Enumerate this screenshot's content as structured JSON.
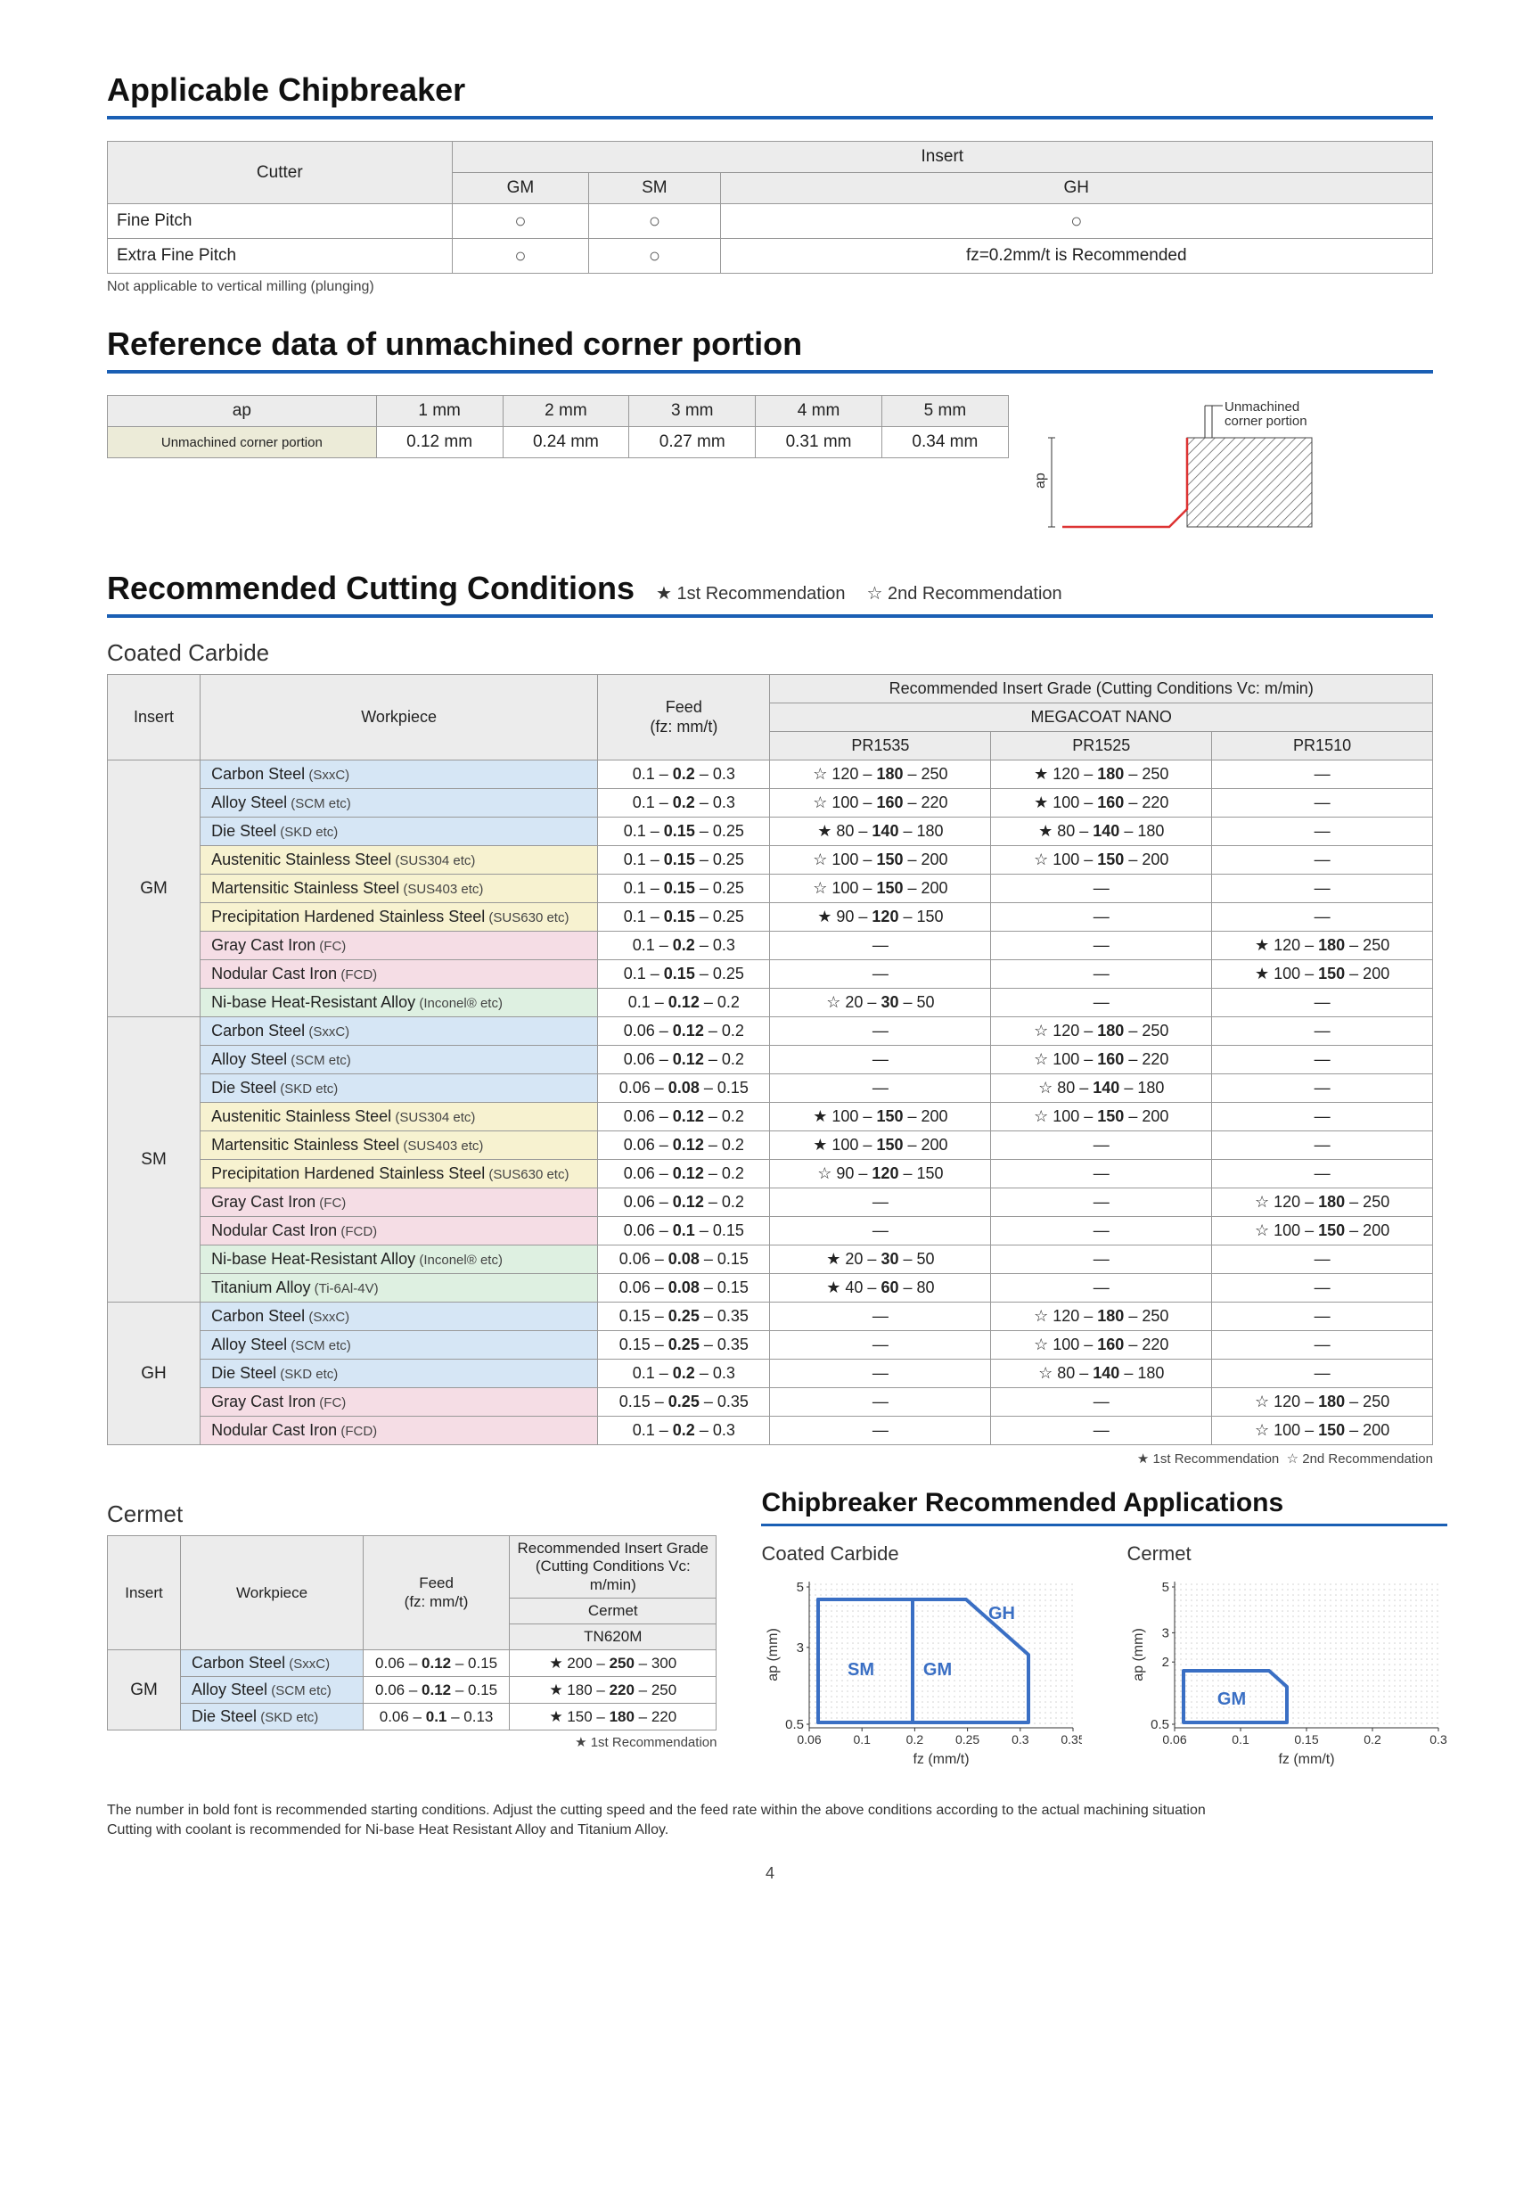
{
  "sections": {
    "chipbreaker": {
      "title": "Applicable Chipbreaker",
      "table": {
        "cutterHeader": "Cutter",
        "insertHeader": "Insert",
        "cols": [
          "GM",
          "SM",
          "GH"
        ],
        "rows": [
          {
            "label": "Fine Pitch",
            "vals": [
              "○",
              "○",
              "○"
            ]
          },
          {
            "label": "Extra Fine Pitch",
            "vals": [
              "○",
              "○",
              "fz=0.2mm/t is Recommended"
            ]
          }
        ],
        "note": "Not applicable to vertical milling (plunging)"
      }
    },
    "reference": {
      "title": "Reference data of unmachined corner portion",
      "headers": [
        "ap",
        "1 mm",
        "2 mm",
        "3 mm",
        "4 mm",
        "5 mm"
      ],
      "rowLabel": "Unmachined corner portion",
      "rowVals": [
        "0.12 mm",
        "0.24 mm",
        "0.27 mm",
        "0.31 mm",
        "0.34 mm"
      ],
      "diagram": {
        "apLabel": "ap",
        "cornerLabel": "Unmachined\ncorner portion"
      }
    },
    "cutting": {
      "title": "Recommended Cutting Conditions",
      "legend1": "1st Recommendation",
      "legend2": "2nd Recommendation",
      "coated": {
        "subhead": "Coated Carbide",
        "headers": {
          "insert": "Insert",
          "workpiece": "Workpiece",
          "feed": "Feed\n(fz: mm/t)",
          "topGrade": "Recommended Insert Grade (Cutting Conditions Vc: m/min)",
          "meganano": "MEGACOAT NANO",
          "grades": [
            "PR1535",
            "PR1525",
            "PR1510"
          ]
        },
        "groups": [
          {
            "insert": "GM",
            "rows": [
              {
                "bg": "blue",
                "wp": "Carbon Steel (SxxC)",
                "feed": [
                  "0.1",
                  "0.2",
                  "0.3"
                ],
                "g": [
                  [
                    "☆",
                    "120",
                    "180",
                    "250"
                  ],
                  [
                    "★",
                    "120",
                    "180",
                    "250"
                  ],
                  null
                ]
              },
              {
                "bg": "blue",
                "wp": "Alloy Steel (SCM etc)",
                "feed": [
                  "0.1",
                  "0.2",
                  "0.3"
                ],
                "g": [
                  [
                    "☆",
                    "100",
                    "160",
                    "220"
                  ],
                  [
                    "★",
                    "100",
                    "160",
                    "220"
                  ],
                  null
                ]
              },
              {
                "bg": "blue",
                "wp": "Die Steel (SKD etc)",
                "feed": [
                  "0.1",
                  "0.15",
                  "0.25"
                ],
                "g": [
                  [
                    "★",
                    "80",
                    "140",
                    "180"
                  ],
                  [
                    "★",
                    "80",
                    "140",
                    "180"
                  ],
                  null
                ]
              },
              {
                "bg": "yellow",
                "wp": "Austenitic Stainless Steel (SUS304 etc)",
                "feed": [
                  "0.1",
                  "0.15",
                  "0.25"
                ],
                "g": [
                  [
                    "☆",
                    "100",
                    "150",
                    "200"
                  ],
                  [
                    "☆",
                    "100",
                    "150",
                    "200"
                  ],
                  null
                ]
              },
              {
                "bg": "yellow",
                "wp": "Martensitic Stainless Steel (SUS403 etc)",
                "feed": [
                  "0.1",
                  "0.15",
                  "0.25"
                ],
                "g": [
                  [
                    "☆",
                    "100",
                    "150",
                    "200"
                  ],
                  null,
                  null
                ]
              },
              {
                "bg": "yellow",
                "wp": "Precipitation Hardened Stainless Steel (SUS630 etc)",
                "feed": [
                  "0.1",
                  "0.15",
                  "0.25"
                ],
                "g": [
                  [
                    "★",
                    "90",
                    "120",
                    "150"
                  ],
                  null,
                  null
                ]
              },
              {
                "bg": "pink",
                "wp": "Gray Cast Iron (FC)",
                "feed": [
                  "0.1",
                  "0.2",
                  "0.3"
                ],
                "g": [
                  null,
                  null,
                  [
                    "★",
                    "120",
                    "180",
                    "250"
                  ]
                ]
              },
              {
                "bg": "pink",
                "wp": "Nodular Cast Iron (FCD)",
                "feed": [
                  "0.1",
                  "0.15",
                  "0.25"
                ],
                "g": [
                  null,
                  null,
                  [
                    "★",
                    "100",
                    "150",
                    "200"
                  ]
                ]
              },
              {
                "bg": "green",
                "wp": "Ni-base Heat-Resistant Alloy (Inconel® etc)",
                "feed": [
                  "0.1",
                  "0.12",
                  "0.2"
                ],
                "g": [
                  [
                    "☆",
                    "20",
                    "30",
                    "50"
                  ],
                  null,
                  null
                ]
              }
            ]
          },
          {
            "insert": "SM",
            "rows": [
              {
                "bg": "blue",
                "wp": "Carbon Steel (SxxC)",
                "feed": [
                  "0.06",
                  "0.12",
                  "0.2"
                ],
                "g": [
                  null,
                  [
                    "☆",
                    "120",
                    "180",
                    "250"
                  ],
                  null
                ]
              },
              {
                "bg": "blue",
                "wp": "Alloy Steel (SCM etc)",
                "feed": [
                  "0.06",
                  "0.12",
                  "0.2"
                ],
                "g": [
                  null,
                  [
                    "☆",
                    "100",
                    "160",
                    "220"
                  ],
                  null
                ]
              },
              {
                "bg": "blue",
                "wp": "Die Steel (SKD etc)",
                "feed": [
                  "0.06",
                  "0.08",
                  "0.15"
                ],
                "g": [
                  null,
                  [
                    "☆",
                    "80",
                    "140",
                    "180"
                  ],
                  null
                ]
              },
              {
                "bg": "yellow",
                "wp": "Austenitic Stainless Steel (SUS304 etc)",
                "feed": [
                  "0.06",
                  "0.12",
                  "0.2"
                ],
                "g": [
                  [
                    "★",
                    "100",
                    "150",
                    "200"
                  ],
                  [
                    "☆",
                    "100",
                    "150",
                    "200"
                  ],
                  null
                ]
              },
              {
                "bg": "yellow",
                "wp": "Martensitic Stainless Steel (SUS403 etc)",
                "feed": [
                  "0.06",
                  "0.12",
                  "0.2"
                ],
                "g": [
                  [
                    "★",
                    "100",
                    "150",
                    "200"
                  ],
                  null,
                  null
                ]
              },
              {
                "bg": "yellow",
                "wp": "Precipitation Hardened Stainless Steel (SUS630 etc)",
                "feed": [
                  "0.06",
                  "0.12",
                  "0.2"
                ],
                "g": [
                  [
                    "☆",
                    "90",
                    "120",
                    "150"
                  ],
                  null,
                  null
                ]
              },
              {
                "bg": "pink",
                "wp": "Gray Cast Iron (FC)",
                "feed": [
                  "0.06",
                  "0.12",
                  "0.2"
                ],
                "g": [
                  null,
                  null,
                  [
                    "☆",
                    "120",
                    "180",
                    "250"
                  ]
                ]
              },
              {
                "bg": "pink",
                "wp": "Nodular Cast Iron (FCD)",
                "feed": [
                  "0.06",
                  "0.1",
                  "0.15"
                ],
                "g": [
                  null,
                  null,
                  [
                    "☆",
                    "100",
                    "150",
                    "200"
                  ]
                ]
              },
              {
                "bg": "green",
                "wp": "Ni-base Heat-Resistant Alloy (Inconel® etc)",
                "feed": [
                  "0.06",
                  "0.08",
                  "0.15"
                ],
                "g": [
                  [
                    "★",
                    "20",
                    "30",
                    "50"
                  ],
                  null,
                  null
                ]
              },
              {
                "bg": "green",
                "wp": "Titanium Alloy (Ti-6Al-4V)",
                "feed": [
                  "0.06",
                  "0.08",
                  "0.15"
                ],
                "g": [
                  [
                    "★",
                    "40",
                    "60",
                    "80"
                  ],
                  null,
                  null
                ]
              }
            ]
          },
          {
            "insert": "GH",
            "rows": [
              {
                "bg": "blue",
                "wp": "Carbon Steel (SxxC)",
                "feed": [
                  "0.15",
                  "0.25",
                  "0.35"
                ],
                "g": [
                  null,
                  [
                    "☆",
                    "120",
                    "180",
                    "250"
                  ],
                  null
                ]
              },
              {
                "bg": "blue",
                "wp": "Alloy Steel (SCM etc)",
                "feed": [
                  "0.15",
                  "0.25",
                  "0.35"
                ],
                "g": [
                  null,
                  [
                    "☆",
                    "100",
                    "160",
                    "220"
                  ],
                  null
                ]
              },
              {
                "bg": "blue",
                "wp": "Die Steel (SKD etc)",
                "feed": [
                  "0.1",
                  "0.2",
                  "0.3"
                ],
                "g": [
                  null,
                  [
                    "☆",
                    "80",
                    "140",
                    "180"
                  ],
                  null
                ]
              },
              {
                "bg": "pink",
                "wp": "Gray Cast Iron (FC)",
                "feed": [
                  "0.15",
                  "0.25",
                  "0.35"
                ],
                "g": [
                  null,
                  null,
                  [
                    "☆",
                    "120",
                    "180",
                    "250"
                  ]
                ]
              },
              {
                "bg": "pink",
                "wp": "Nodular Cast Iron (FCD)",
                "feed": [
                  "0.1",
                  "0.2",
                  "0.3"
                ],
                "g": [
                  null,
                  null,
                  [
                    "☆",
                    "100",
                    "150",
                    "200"
                  ]
                ]
              }
            ]
          }
        ]
      },
      "cermet": {
        "subhead": "Cermet",
        "headers": {
          "insert": "Insert",
          "workpiece": "Workpiece",
          "feed": "Feed\n(fz: mm/t)",
          "top": "Recommended Insert Grade\n(Cutting Conditions Vc: m/min)",
          "sub": "Cermet",
          "grade": "TN620M"
        },
        "insert": "GM",
        "rows": [
          {
            "bg": "blue",
            "wp": "Carbon Steel (SxxC)",
            "feed": [
              "0.06",
              "0.12",
              "0.15"
            ],
            "g": [
              "★",
              "200",
              "250",
              "300"
            ]
          },
          {
            "bg": "blue",
            "wp": "Alloy Steel (SCM etc)",
            "feed": [
              "0.06",
              "0.12",
              "0.15"
            ],
            "g": [
              "★",
              "180",
              "220",
              "250"
            ]
          },
          {
            "bg": "blue",
            "wp": "Die Steel (SKD etc)",
            "feed": [
              "0.06",
              "0.1",
              "0.13"
            ],
            "g": [
              "★",
              "150",
              "180",
              "220"
            ]
          }
        ],
        "legend": "1st Recommendation"
      }
    },
    "apps": {
      "title": "Chipbreaker Recommended Applications",
      "coated": {
        "label": "Coated Carbide",
        "ylab": "ap (mm)",
        "xlab": "fz (mm/t)",
        "yticks": [
          "5",
          "3",
          "0.5"
        ],
        "xticks": [
          "0.06",
          "0.1",
          "0.2",
          "0.25",
          "0.3",
          "0.35"
        ],
        "boxes": {
          "SM": "SM",
          "GM": "GM",
          "GH": "GH"
        },
        "colors": {
          "stroke": "#3a6fc4",
          "text": "#3a6fc4",
          "grid": "#cfcfcf"
        }
      },
      "cermet": {
        "label": "Cermet",
        "ylab": "ap (mm)",
        "xlab": "fz (mm/t)",
        "yticks": [
          "5",
          "3",
          "2",
          "0.5"
        ],
        "xticks": [
          "0.06",
          "0.1",
          "0.15",
          "0.2",
          "0.3"
        ],
        "boxes": {
          "GM": "GM"
        },
        "colors": {
          "stroke": "#3a6fc4",
          "text": "#3a6fc4",
          "grid": "#cfcfcf"
        }
      }
    },
    "footnote": "The number in bold font is recommended starting conditions. Adjust the cutting speed and the feed rate within the above conditions according to the actual machining situation\nCutting with coolant is recommended for Ni-base Heat Resistant Alloy and Titanium Alloy.",
    "pageNum": "4"
  }
}
